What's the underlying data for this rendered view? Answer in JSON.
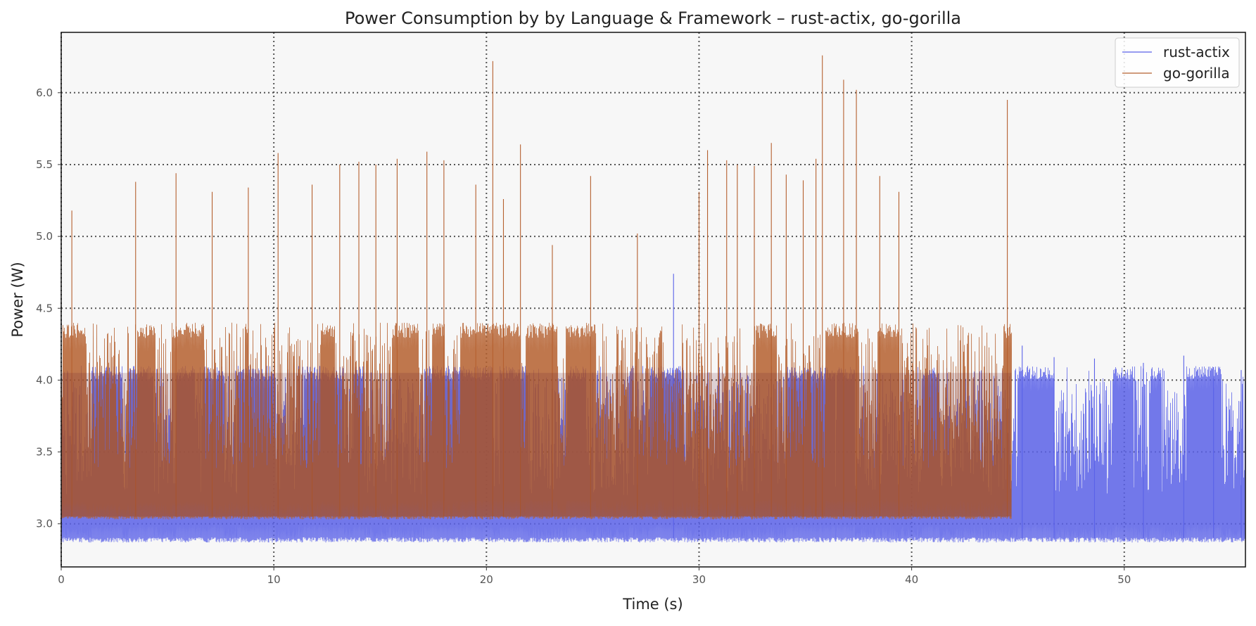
{
  "chart_data": {
    "type": "line",
    "title": "Power Consumption by by Language & Framework – rust-actix, go-gorilla",
    "xlabel": "Time (s)",
    "ylabel": "Power (W)",
    "xlim": [
      0,
      55.7
    ],
    "ylim": [
      2.7,
      6.42
    ],
    "x_ticks": [
      0,
      10,
      20,
      30,
      40,
      50
    ],
    "y_ticks": [
      3.0,
      3.5,
      4.0,
      4.5,
      5.0,
      5.5,
      6.0
    ],
    "x_tick_labels": [
      "0",
      "10",
      "20",
      "30",
      "40",
      "50"
    ],
    "y_tick_labels": [
      "3.0",
      "3.5",
      "4.0",
      "4.5",
      "5.0",
      "5.5",
      "6.0"
    ],
    "grid": true,
    "legend_position": "top-right",
    "series": [
      {
        "name": "rust-actix",
        "color": "#5a62e8",
        "time_range": [
          0,
          55.7
        ],
        "baseline": 2.9,
        "typical_range": [
          2.87,
          4.1
        ],
        "peaks": [
          {
            "x": 28.8,
            "y": 4.74
          },
          {
            "x": 45.2,
            "y": 4.24
          },
          {
            "x": 46.7,
            "y": 4.16
          },
          {
            "x": 48.6,
            "y": 4.15
          },
          {
            "x": 50.9,
            "y": 4.12
          },
          {
            "x": 52.8,
            "y": 4.17
          },
          {
            "x": 54.2,
            "y": 4.09
          },
          {
            "x": 55.5,
            "y": 4.07
          }
        ]
      },
      {
        "name": "go-gorilla",
        "color": "#b5602f",
        "time_range": [
          0,
          44.7
        ],
        "baseline": 3.05,
        "typical_range": [
          3.03,
          4.4
        ],
        "peaks": [
          {
            "x": 0.5,
            "y": 5.18
          },
          {
            "x": 3.5,
            "y": 5.38
          },
          {
            "x": 5.4,
            "y": 5.44
          },
          {
            "x": 7.1,
            "y": 5.31
          },
          {
            "x": 8.8,
            "y": 5.34
          },
          {
            "x": 10.2,
            "y": 5.58
          },
          {
            "x": 11.8,
            "y": 5.36
          },
          {
            "x": 13.1,
            "y": 5.5
          },
          {
            "x": 14.0,
            "y": 5.52
          },
          {
            "x": 14.8,
            "y": 5.5
          },
          {
            "x": 15.8,
            "y": 5.54
          },
          {
            "x": 17.2,
            "y": 5.59
          },
          {
            "x": 18.0,
            "y": 5.53
          },
          {
            "x": 19.5,
            "y": 5.36
          },
          {
            "x": 20.3,
            "y": 6.22
          },
          {
            "x": 20.8,
            "y": 5.26
          },
          {
            "x": 21.6,
            "y": 5.64
          },
          {
            "x": 23.1,
            "y": 4.94
          },
          {
            "x": 24.9,
            "y": 5.42
          },
          {
            "x": 27.1,
            "y": 5.02
          },
          {
            "x": 30.0,
            "y": 5.31
          },
          {
            "x": 30.4,
            "y": 5.6
          },
          {
            "x": 31.3,
            "y": 5.53
          },
          {
            "x": 31.8,
            "y": 5.5
          },
          {
            "x": 32.6,
            "y": 5.49
          },
          {
            "x": 33.4,
            "y": 5.65
          },
          {
            "x": 34.1,
            "y": 5.43
          },
          {
            "x": 34.9,
            "y": 5.39
          },
          {
            "x": 35.5,
            "y": 5.54
          },
          {
            "x": 35.8,
            "y": 6.26
          },
          {
            "x": 36.8,
            "y": 6.09
          },
          {
            "x": 37.4,
            "y": 6.02
          },
          {
            "x": 38.5,
            "y": 5.42
          },
          {
            "x": 39.4,
            "y": 5.31
          },
          {
            "x": 44.5,
            "y": 5.95
          }
        ]
      }
    ]
  }
}
